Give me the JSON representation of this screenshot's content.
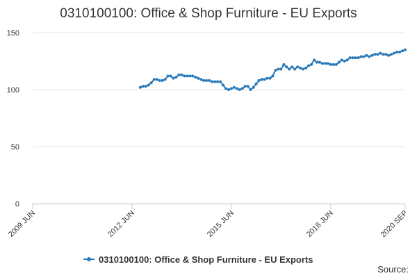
{
  "chart_data": {
    "type": "line",
    "title": "0310100100: Office & Shop Furniture - EU Exports",
    "source": "Source:",
    "x": [
      "2012-09",
      "2012-10",
      "2012-11",
      "2012-12",
      "2013-01",
      "2013-02",
      "2013-03",
      "2013-04",
      "2013-05",
      "2013-06",
      "2013-07",
      "2013-08",
      "2013-09",
      "2013-10",
      "2013-11",
      "2013-12",
      "2014-01",
      "2014-02",
      "2014-03",
      "2014-04",
      "2014-05",
      "2014-06",
      "2014-07",
      "2014-08",
      "2014-09",
      "2014-10",
      "2014-11",
      "2014-12",
      "2015-01",
      "2015-02",
      "2015-03",
      "2015-04",
      "2015-05",
      "2015-06",
      "2015-07",
      "2015-08",
      "2015-09",
      "2015-10",
      "2015-11",
      "2015-12",
      "2016-01",
      "2016-02",
      "2016-03",
      "2016-04",
      "2016-05",
      "2016-06",
      "2016-07",
      "2016-08",
      "2016-09",
      "2016-10",
      "2016-11",
      "2016-12",
      "2017-01",
      "2017-02",
      "2017-03",
      "2017-04",
      "2017-05",
      "2017-06",
      "2017-07",
      "2017-08",
      "2017-09",
      "2017-10",
      "2017-11",
      "2017-12",
      "2018-01",
      "2018-02",
      "2018-03",
      "2018-04",
      "2018-05",
      "2018-06",
      "2018-07",
      "2018-08",
      "2018-09",
      "2018-10",
      "2018-11",
      "2018-12",
      "2019-01",
      "2019-02",
      "2019-03",
      "2019-04",
      "2019-05",
      "2019-06",
      "2019-07",
      "2019-08",
      "2019-09",
      "2019-10",
      "2019-11",
      "2019-12",
      "2020-01",
      "2020-02",
      "2020-03",
      "2020-04",
      "2020-05",
      "2020-06",
      "2020-07",
      "2020-08",
      "2020-09"
    ],
    "series": [
      {
        "name": "0310100100: Office & Shop Furniture - EU Exports",
        "color": "#2a7ab9",
        "values": [
          102,
          103,
          103,
          104,
          106,
          109,
          109,
          108,
          108,
          109,
          112,
          112,
          110,
          111,
          113,
          113,
          112,
          112,
          112,
          112,
          111,
          110,
          109,
          108,
          108,
          108,
          107,
          107,
          107,
          107,
          104,
          101,
          100,
          101,
          102,
          101,
          100,
          101,
          103,
          103,
          100,
          102,
          105,
          108,
          109,
          109,
          110,
          110,
          112,
          117,
          118,
          118,
          122,
          120,
          118,
          120,
          118,
          120,
          119,
          118,
          119,
          121,
          122,
          126,
          124,
          124,
          123,
          123,
          123,
          122,
          122,
          122,
          124,
          126,
          125,
          126,
          128,
          128,
          128,
          128,
          129,
          129,
          130,
          129,
          130,
          131,
          131,
          132,
          131,
          131,
          130,
          131,
          132,
          133,
          133,
          134,
          135
        ]
      }
    ],
    "xlim": [
      "2009-06",
      "2020-09"
    ],
    "xticks": [
      {
        "value": "2009-06",
        "label": "2009 JUN"
      },
      {
        "value": "2012-06",
        "label": "2012 JUN"
      },
      {
        "value": "2015-06",
        "label": "2015 JUN"
      },
      {
        "value": "2018-06",
        "label": "2018 JUN"
      },
      {
        "value": "2020-09",
        "label": "2020 SEP"
      }
    ],
    "ylim": [
      0,
      150
    ],
    "yticks": [
      0,
      50,
      100,
      150
    ],
    "grid": true
  }
}
